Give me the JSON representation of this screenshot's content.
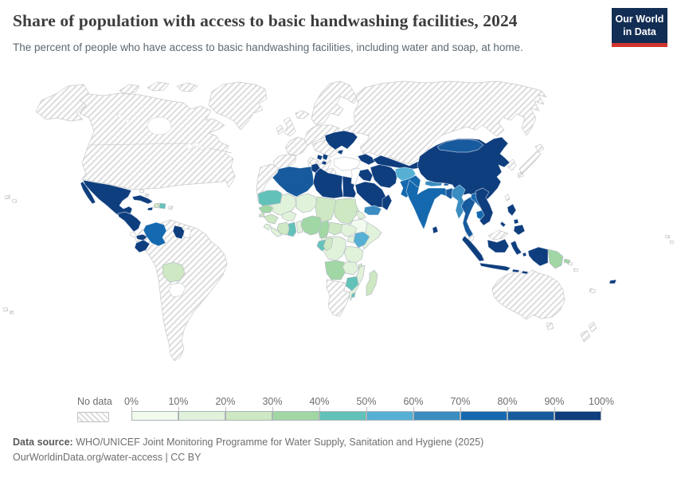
{
  "header": {
    "title": "Share of population with access to basic handwashing facilities, 2024",
    "subtitle": "The percent of people who have access to basic handwashing facilities, including water and soap, at home.",
    "logo": {
      "line1": "Our World",
      "line2": "in Data",
      "bg_color": "#132e54",
      "accent_color": "#d0342c"
    }
  },
  "legend": {
    "no_data_label": "No data",
    "tick_labels": [
      "0%",
      "10%",
      "20%",
      "30%",
      "40%",
      "50%",
      "60%",
      "70%",
      "80%",
      "90%",
      "100%"
    ]
  },
  "footer": {
    "source_label": "Data source:",
    "source_text": "WHO/UNICEF Joint Monitoring Programme for Water Supply, Sanitation and Hygiene (2025)",
    "attribution": "OurWorldinData.org/water-access | CC BY"
  },
  "chart_data": {
    "type": "heatmap",
    "subtype": "world-choropleth",
    "title": "Share of population with access to basic handwashing facilities",
    "year": "2024",
    "unit": "% of population",
    "no_data_style": "diagonal-hatch",
    "bins": [
      {
        "range": "0-10%",
        "color": "#f2faee"
      },
      {
        "range": "10-20%",
        "color": "#e1f2da"
      },
      {
        "range": "20-30%",
        "color": "#cde8c2"
      },
      {
        "range": "30-40%",
        "color": "#a0d7a4"
      },
      {
        "range": "40-50%",
        "color": "#62c2b9"
      },
      {
        "range": "50-60%",
        "color": "#55b0d4"
      },
      {
        "range": "60-70%",
        "color": "#3b8cc0"
      },
      {
        "range": "70-80%",
        "color": "#1569ae"
      },
      {
        "range": "80-90%",
        "color": "#175a9d"
      },
      {
        "range": "90-100%",
        "color": "#0e3e7e"
      }
    ],
    "countries": {
      "mexico": 9,
      "guatemala-honduras-nicaragua": 9,
      "panama": 9,
      "costa-rica": -2,
      "cuba": 9,
      "jamaica": 9,
      "haiti": 2,
      "dominican-republic": 4,
      "puerto-rico": -1,
      "bahamas": -1,
      "colombia": 7,
      "ecuador": 9,
      "guyana": 9,
      "suriname": -2,
      "bolivia": 2,
      "paraguay": -2,
      "south-america-no-data": -1,
      "north-america-no-data": -1,
      "alaska-chukotka": -1,
      "greenland": -1,
      "arctic-islands": -1,
      "iceland": -1,
      "hawaii": -1,
      "french-polynesia": -1,
      "morocco-western-sahara": -1,
      "algeria": 8,
      "tunisia": 9,
      "libya": 9,
      "egypt": 9,
      "mauritania": 4,
      "mali": 1,
      "niger": 1,
      "chad": 2,
      "sudan": 2,
      "eritrea": 1,
      "ethiopia": 0,
      "somalia": 1,
      "senegal": 3,
      "guinea-bissau": 2,
      "guinea": 2,
      "sierra-leone": 1,
      "liberia": 1,
      "cote-divoire": 2,
      "ghana": 4,
      "togo-benin": 1,
      "burkina-faso": 1,
      "nigeria": 3,
      "cameroon": 3,
      "central-african-republic": 2,
      "south-sudan": 1,
      "uganda": 1,
      "kenya": 5,
      "tanzania": 1,
      "dr-congo": 1,
      "gabon": 4,
      "congo": 2,
      "angola": 3,
      "zambia": 1,
      "malawi": 2,
      "mozambique": 1,
      "zimbabwe": 4,
      "eswatini": 4,
      "madagascar": 2,
      "southern-africa-no-data": -1,
      "europe-iberia": -1,
      "europe-france": -1,
      "europe-central": -1,
      "europe-east": -1,
      "europe-balkans": -1,
      "europe-greece": -1,
      "europe-italy": -1,
      "europe-sardinia": -1,
      "europe-sicily": -1,
      "europe-uk": -1,
      "europe-ireland": -1,
      "europe-scandinavia": -1,
      "ukraine": 9,
      "crimea": 9,
      "bosnia-and-herzegovina": 9,
      "serbia": 9,
      "north-macedonia": 9,
      "russia-kazakhstan": -1,
      "turkey": -2,
      "syria-jordan": -2,
      "caucasus": 9,
      "iraq": 9,
      "iran": 9,
      "saudi-arabia": 9,
      "yemen": 6,
      "oman": 9,
      "central-asia": 9,
      "afghanistan": 5,
      "pakistan": 7,
      "india": 7,
      "nepal": 6,
      "bhutan": 8,
      "bangladesh": 8,
      "sri-lanka": 9,
      "myanmar": 6,
      "thailand": 8,
      "laos": 7,
      "cambodia": 7,
      "vietnam": 9,
      "china": 9,
      "mongolia": 8,
      "korea": -1,
      "japan": -1,
      "taiwan": -1,
      "philippines": 9,
      "malaysia": -1,
      "indonesia": 9,
      "papua-new-guinea": 3,
      "pacific-islands": -1,
      "fiji": 9,
      "australia": -1,
      "new-zealand": -1
    }
  }
}
